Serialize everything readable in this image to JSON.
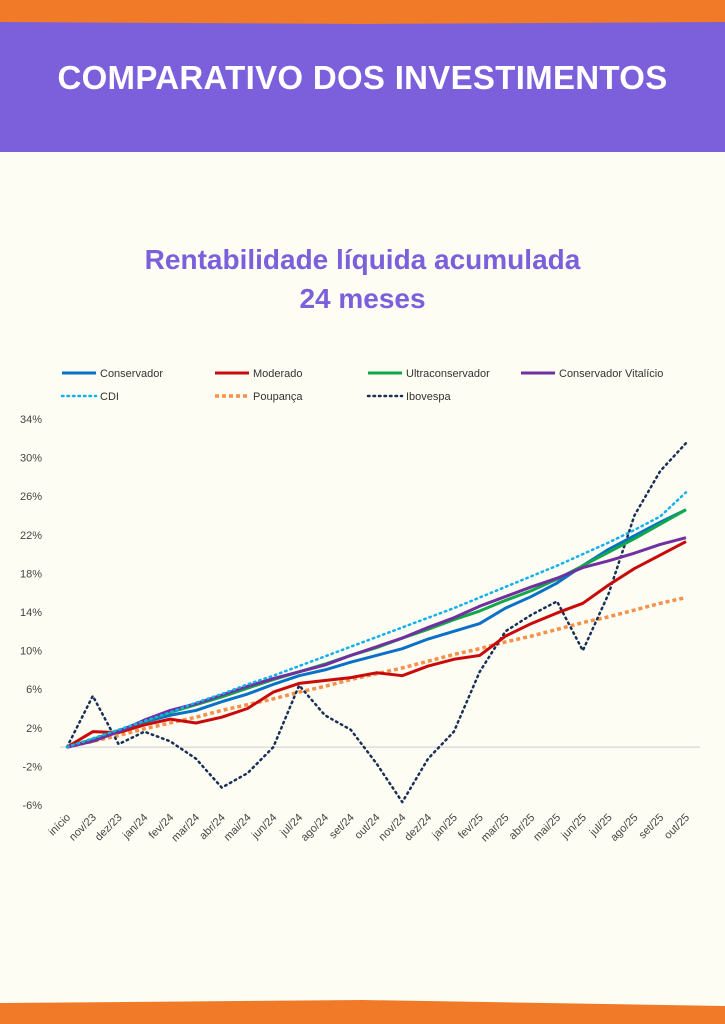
{
  "header": {
    "title": "COMPARATIVO DOS INVESTIMENTOS"
  },
  "chart_data": {
    "type": "line",
    "title": "Rentabilidade líquida acumulada",
    "subtitle": "24 meses",
    "xlabel": "",
    "ylabel": "",
    "ylim": [
      -6,
      34
    ],
    "yticks": [
      "-6%",
      "-2%",
      "2%",
      "6%",
      "10%",
      "14%",
      "18%",
      "22%",
      "26%",
      "30%",
      "34%"
    ],
    "ytick_values": [
      -6,
      -2,
      2,
      6,
      10,
      14,
      18,
      22,
      26,
      30,
      34
    ],
    "legend_position": "top",
    "categories": [
      "início",
      "nov/23",
      "dez/23",
      "jan/24",
      "fev/24",
      "mar/24",
      "abr/24",
      "mai/24",
      "jun/24",
      "jul/24",
      "ago/24",
      "set/24",
      "out/24",
      "nov/24",
      "dez/24",
      "jan/25",
      "fev/25",
      "mar/25",
      "abr/25",
      "mai/25",
      "jun/25",
      "jul/25",
      "ago/25",
      "set/25",
      "out/25"
    ],
    "series": [
      {
        "name": "Conservador",
        "color": "#0a70c8",
        "style": "solid",
        "values": [
          0,
          0.8,
          1.7,
          2.6,
          3.3,
          3.8,
          4.7,
          5.5,
          6.5,
          7.4,
          8.0,
          8.8,
          9.5,
          10.2,
          11.2,
          12.0,
          12.8,
          14.4,
          15.6,
          17.0,
          18.8,
          20.5,
          21.9,
          23.3,
          24.6
        ]
      },
      {
        "name": "Moderado",
        "color": "#c80a0a",
        "style": "solid",
        "values": [
          0,
          1.6,
          1.5,
          2.3,
          2.9,
          2.5,
          3.1,
          4.0,
          5.7,
          6.6,
          6.9,
          7.2,
          7.7,
          7.4,
          8.4,
          9.1,
          9.5,
          11.5,
          12.8,
          13.9,
          14.9,
          16.8,
          18.5,
          19.9,
          21.3
        ]
      },
      {
        "name": "Ultraconservador",
        "color": "#10a84a",
        "style": "solid",
        "values": [
          0,
          0.8,
          1.7,
          2.7,
          3.6,
          4.4,
          5.2,
          6.1,
          7.0,
          7.8,
          8.6,
          9.5,
          10.3,
          11.3,
          12.2,
          13.2,
          14.1,
          15.2,
          16.2,
          17.4,
          18.8,
          20.2,
          21.6,
          23.1,
          24.6
        ]
      },
      {
        "name": "Conservador Vitalício",
        "color": "#7030a0",
        "style": "solid",
        "values": [
          0,
          0.6,
          1.6,
          2.8,
          3.8,
          4.5,
          5.4,
          6.3,
          7.1,
          7.8,
          8.5,
          9.5,
          10.4,
          11.3,
          12.4,
          13.4,
          14.6,
          15.6,
          16.6,
          17.5,
          18.6,
          19.3,
          20.1,
          21.0,
          21.7
        ]
      },
      {
        "name": "CDI",
        "color": "#10b0f0",
        "style": "dotted",
        "values": [
          0,
          0.9,
          1.8,
          2.7,
          3.6,
          4.6,
          5.5,
          6.5,
          7.4,
          8.4,
          9.4,
          10.4,
          11.4,
          12.4,
          13.4,
          14.4,
          15.5,
          16.6,
          17.7,
          18.8,
          20.0,
          21.2,
          22.5,
          23.9,
          26.4
        ]
      },
      {
        "name": "Poupança",
        "color": "#f4914a",
        "style": "dashed",
        "values": [
          0,
          0.6,
          1.2,
          1.9,
          2.5,
          3.1,
          3.8,
          4.4,
          5.0,
          5.7,
          6.3,
          7.0,
          7.6,
          8.2,
          8.9,
          9.6,
          10.2,
          10.9,
          11.5,
          12.2,
          12.9,
          13.5,
          14.2,
          14.9,
          15.5
        ]
      },
      {
        "name": "Ibovespa",
        "color": "#1a2f55",
        "style": "dotted",
        "values": [
          0,
          5.3,
          0.3,
          1.6,
          0.6,
          -1.2,
          -4.2,
          -2.7,
          0.0,
          6.4,
          3.3,
          1.8,
          -1.7,
          -5.7,
          -1.2,
          1.6,
          7.8,
          12.0,
          13.7,
          15.1,
          10.0,
          15.9,
          24.0,
          28.6,
          31.5
        ]
      }
    ]
  }
}
